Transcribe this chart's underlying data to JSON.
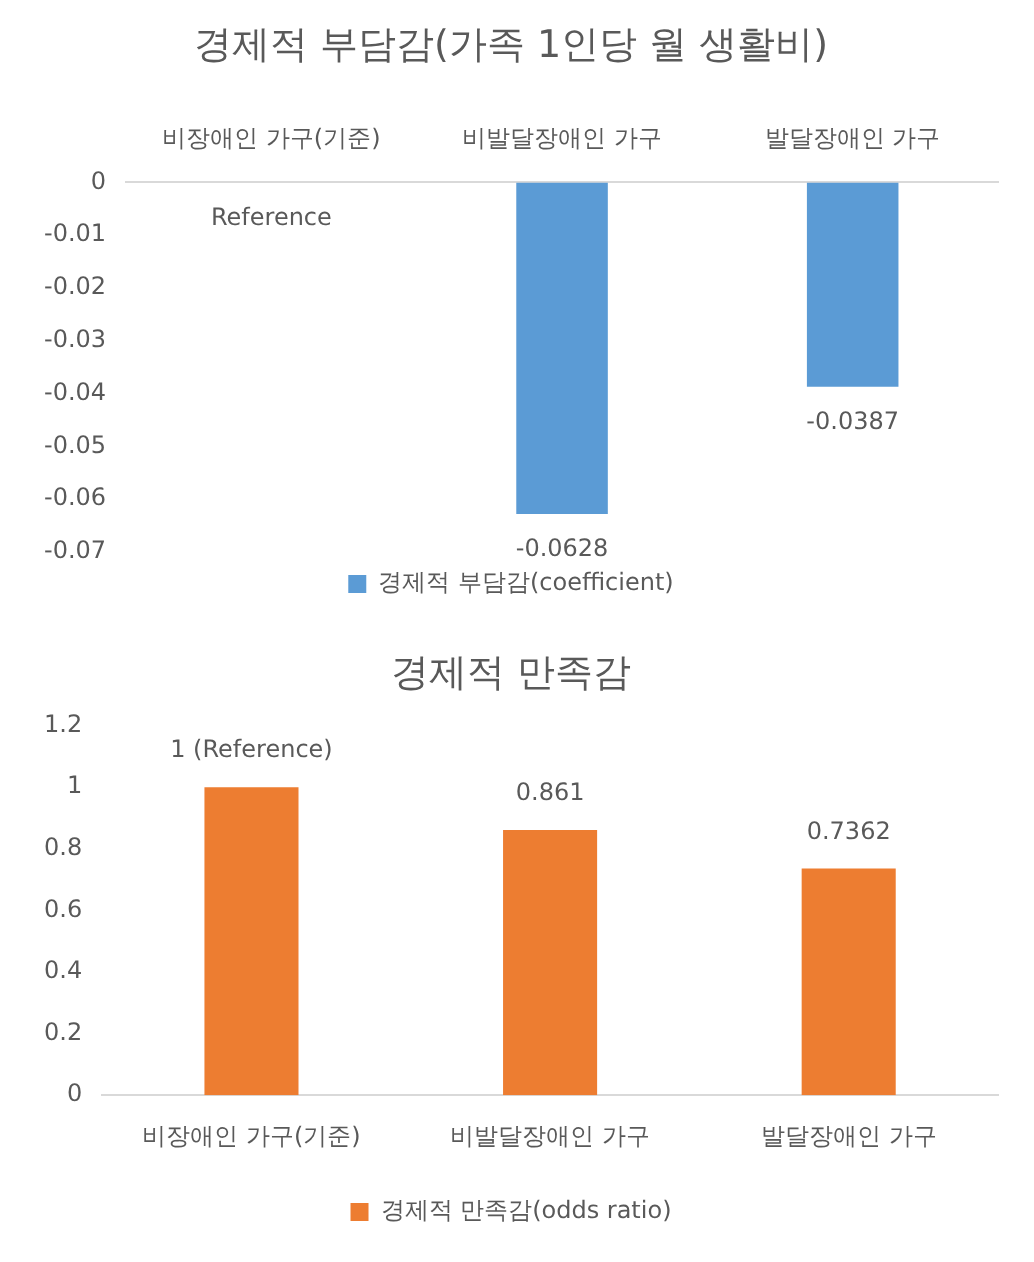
{
  "chart_data": [
    {
      "type": "bar",
      "title": "경제적 부담감(가족 1인당 월 생활비)",
      "categories": [
        "비장애인 가구(기준)",
        "비발달장애인 가구",
        "발달장애인 가구"
      ],
      "series": [
        {
          "name": "경제적 부담감(coefficient)",
          "color": "#5b9bd5",
          "values": [
            0,
            -0.0628,
            -0.0387
          ],
          "value_labels": [
            "Reference",
            "-0.0628",
            "-0.0387"
          ]
        }
      ],
      "ylim": [
        -0.07,
        0
      ],
      "yticks": [
        0,
        -0.01,
        -0.02,
        -0.03,
        -0.04,
        -0.05,
        -0.06,
        -0.07
      ],
      "grid": false,
      "legend": "bottom"
    },
    {
      "type": "bar",
      "title": "경제적 만족감",
      "categories": [
        "비장애인 가구(기준)",
        "비발달장애인 가구",
        "발달장애인 가구"
      ],
      "series": [
        {
          "name": "경제적 만족감(odds ratio)",
          "color": "#ed7d31",
          "values": [
            1,
            0.861,
            0.7362
          ],
          "value_labels": [
            "1 (Reference)",
            "0.861",
            "0.7362"
          ]
        }
      ],
      "ylim": [
        0,
        1.2
      ],
      "yticks": [
        0,
        0.2,
        0.4,
        0.6,
        0.8,
        1,
        1.2
      ],
      "grid": false,
      "legend": "bottom"
    }
  ]
}
